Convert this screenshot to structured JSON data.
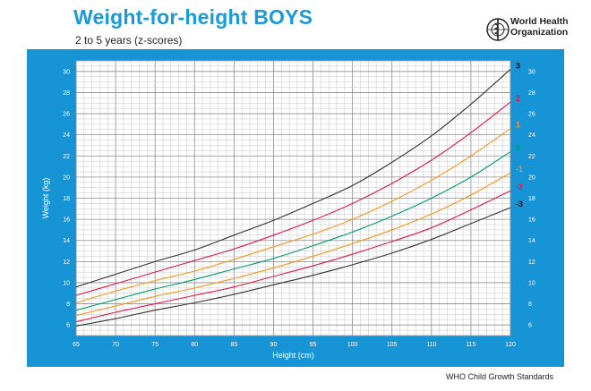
{
  "header": {
    "title": "Weight-for-height BOYS",
    "subtitle": "2 to 5 years (z-scores)",
    "org_line1": "World Health",
    "org_line2": "Organization",
    "logo_icon": "who-emblem-icon"
  },
  "footer": {
    "text": "WHO Child Growth Standards"
  },
  "colors": {
    "panel": "#1694d6",
    "title": "#1a9ad6",
    "grid": "#b9b9b9"
  },
  "chart_data": {
    "type": "line",
    "xlabel": "Height (cm)",
    "ylabel": "Weight (kg)",
    "xlim": [
      65,
      120
    ],
    "ylim": [
      5,
      31
    ],
    "x_ticks": [
      "65",
      "70",
      "75",
      "80",
      "85",
      "90",
      "95",
      "100",
      "105",
      "110",
      "115",
      "120"
    ],
    "y_ticks": [
      "6",
      "8",
      "10",
      "12",
      "14",
      "16",
      "18",
      "20",
      "22",
      "24",
      "26",
      "28",
      "30"
    ],
    "grid": true,
    "x": [
      65,
      70,
      75,
      80,
      85,
      90,
      95,
      100,
      105,
      110,
      115,
      120
    ],
    "series": [
      {
        "name": "3",
        "color": "#333333",
        "values": [
          9.6,
          10.8,
          12.0,
          13.1,
          14.5,
          15.9,
          17.5,
          19.2,
          21.4,
          23.9,
          26.9,
          30.2
        ]
      },
      {
        "name": "2",
        "color": "#e4174a",
        "values": [
          8.8,
          9.9,
          11.0,
          12.1,
          13.2,
          14.5,
          15.9,
          17.5,
          19.4,
          21.6,
          24.2,
          27.1
        ]
      },
      {
        "name": "1",
        "color": "#f7941d",
        "values": [
          8.1,
          9.2,
          10.2,
          11.1,
          12.2,
          13.4,
          14.6,
          16.0,
          17.7,
          19.7,
          22.0,
          24.6
        ]
      },
      {
        "name": "0",
        "color": "#009b72",
        "values": [
          7.4,
          8.4,
          9.4,
          10.3,
          11.3,
          12.3,
          13.5,
          14.8,
          16.3,
          18.0,
          20.0,
          22.4
        ]
      },
      {
        "name": "-1",
        "color": "#f7941d",
        "values": [
          6.9,
          7.8,
          8.7,
          9.5,
          10.4,
          11.4,
          12.5,
          13.7,
          15.0,
          16.5,
          18.3,
          20.4
        ]
      },
      {
        "name": "-2",
        "color": "#e4174a",
        "values": [
          6.3,
          7.2,
          8.0,
          8.8,
          9.6,
          10.6,
          11.6,
          12.7,
          13.9,
          15.2,
          16.9,
          18.7
        ]
      },
      {
        "name": "-3",
        "color": "#333333",
        "values": [
          5.9,
          6.6,
          7.4,
          8.1,
          8.9,
          9.8,
          10.7,
          11.7,
          12.8,
          14.1,
          15.6,
          17.1
        ]
      }
    ]
  }
}
